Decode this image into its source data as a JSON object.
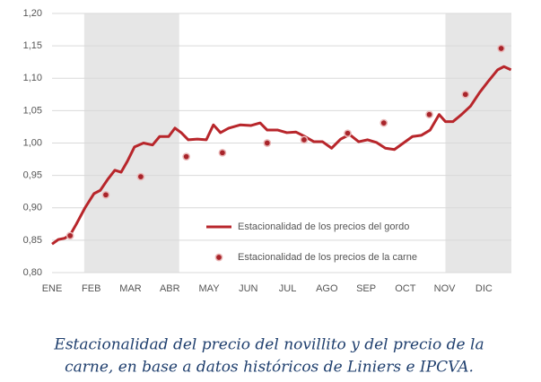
{
  "chart_data": {
    "type": "line",
    "xlim": [
      0,
      11.7
    ],
    "ylim": [
      0.8,
      1.2
    ],
    "yticks": [
      {
        "value": 0.8,
        "label": "0,80"
      },
      {
        "value": 0.85,
        "label": "0,85"
      },
      {
        "value": 0.9,
        "label": "0,90"
      },
      {
        "value": 0.95,
        "label": "0,95"
      },
      {
        "value": 1.0,
        "label": "1,00"
      },
      {
        "value": 1.05,
        "label": "1,05"
      },
      {
        "value": 1.1,
        "label": "1,10"
      },
      {
        "value": 1.15,
        "label": "1,15"
      },
      {
        "value": 1.2,
        "label": "1,20"
      }
    ],
    "xticks": [
      {
        "value": 0,
        "label": "ENE"
      },
      {
        "value": 1,
        "label": "FEB"
      },
      {
        "value": 2,
        "label": "MAR"
      },
      {
        "value": 3,
        "label": "ABR"
      },
      {
        "value": 4,
        "label": "MAY"
      },
      {
        "value": 5,
        "label": "JUN"
      },
      {
        "value": 6,
        "label": "JUL"
      },
      {
        "value": 7,
        "label": "AGO"
      },
      {
        "value": 8,
        "label": "SEP"
      },
      {
        "value": 9,
        "label": "OCT"
      },
      {
        "value": 10,
        "label": "NOV"
      },
      {
        "value": 11,
        "label": "DIC"
      }
    ],
    "grid": true,
    "shaded_ranges": [
      [
        0.82,
        3.24
      ],
      [
        10.02,
        11.7
      ]
    ],
    "shade_color": "#e6e6e6",
    "legend": "bottom-center",
    "series": [
      {
        "name": "Estacionalidad de los precios del gordo",
        "color": "#b8262b",
        "style": "line",
        "x": [
          0,
          0.16,
          0.32,
          0.46,
          0.62,
          0.84,
          1.07,
          1.23,
          1.42,
          1.6,
          1.76,
          1.92,
          2.1,
          2.33,
          2.56,
          2.74,
          2.97,
          3.13,
          3.29,
          3.47,
          3.7,
          3.93,
          4.11,
          4.29,
          4.5,
          4.79,
          5.07,
          5.3,
          5.48,
          5.75,
          5.98,
          6.21,
          6.44,
          6.67,
          6.89,
          7.12,
          7.35,
          7.58,
          7.81,
          8.04,
          8.26,
          8.49,
          8.72,
          8.95,
          9.18,
          9.41,
          9.63,
          9.86,
          10.02,
          10.21,
          10.43,
          10.66,
          10.89,
          11.12,
          11.35,
          11.51,
          11.69
        ],
        "values": [
          0.844,
          0.851,
          0.853,
          0.858,
          0.875,
          0.9,
          0.922,
          0.927,
          0.944,
          0.958,
          0.955,
          0.972,
          0.994,
          1.0,
          0.997,
          1.01,
          1.01,
          1.023,
          1.016,
          1.005,
          1.006,
          1.005,
          1.028,
          1.016,
          1.023,
          1.028,
          1.027,
          1.031,
          1.02,
          1.02,
          1.016,
          1.017,
          1.01,
          1.002,
          1.002,
          0.992,
          1.006,
          1.013,
          1.002,
          1.005,
          1.001,
          0.992,
          0.99,
          1.0,
          1.01,
          1.012,
          1.02,
          1.044,
          1.033,
          1.033,
          1.044,
          1.057,
          1.078,
          1.096,
          1.113,
          1.118,
          1.113
        ]
      },
      {
        "name": "Estacionalidad de los precios de la carne",
        "color": "#a8242a",
        "style": "points",
        "x": [
          0.46,
          1.37,
          2.26,
          3.42,
          4.34,
          5.48,
          6.42,
          7.53,
          8.45,
          9.61,
          10.53,
          11.44
        ],
        "values": [
          0.857,
          0.92,
          0.948,
          0.979,
          0.985,
          1.0,
          1.005,
          1.015,
          1.031,
          1.044,
          1.075,
          1.146
        ]
      }
    ],
    "caption": [
      "Estacionalidad del precio del novillito y del precio de la",
      "carne, en base a datos históricos de Liniers e IPCVA."
    ]
  }
}
